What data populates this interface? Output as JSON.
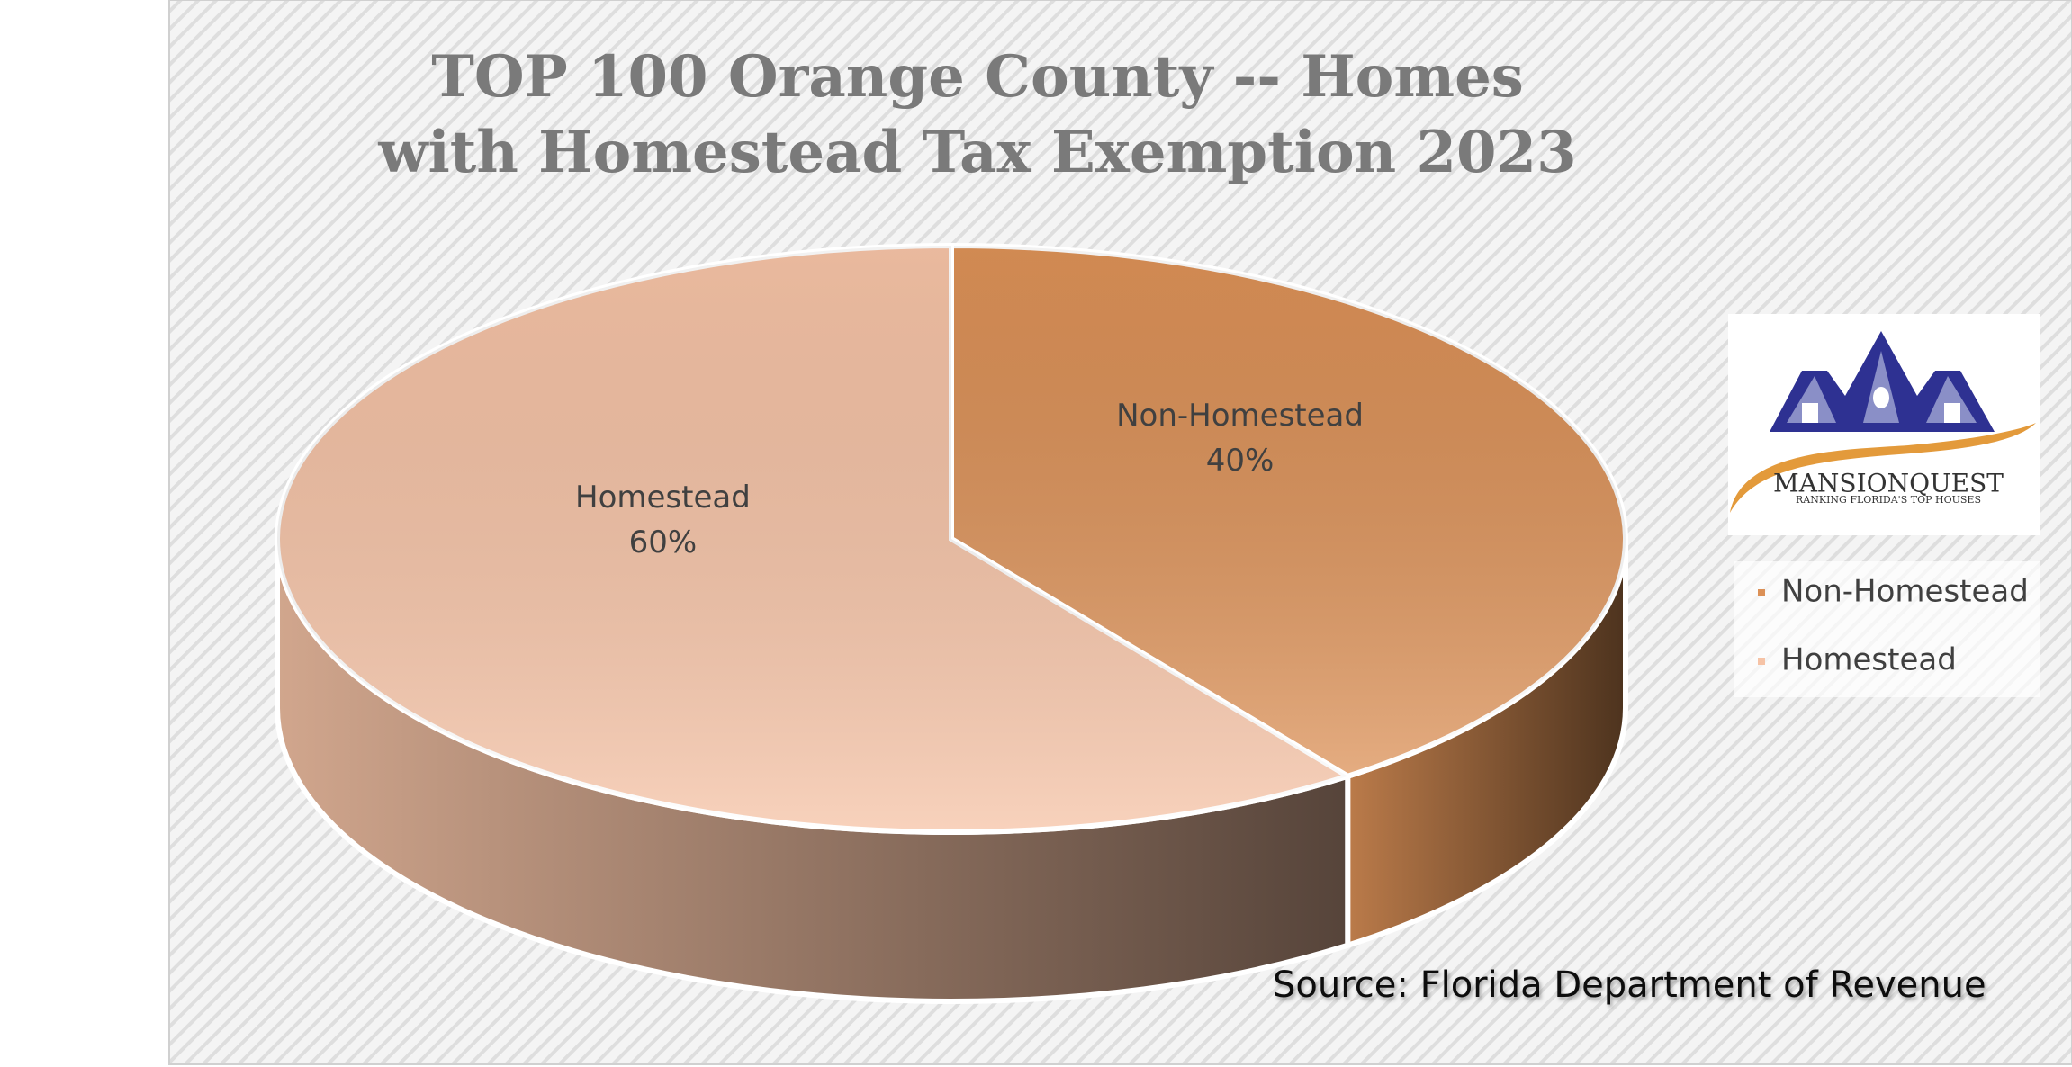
{
  "chart_data": {
    "type": "pie3d",
    "title": "TOP 100 Orange County -- Homes with Homestead Tax Exemption 2023",
    "categories": [
      "Non-Homestead",
      "Homestead"
    ],
    "values": [
      40,
      60
    ],
    "value_labels": [
      "40%",
      "60%"
    ],
    "colors": [
      "#dc9157",
      "#f6c3a6"
    ],
    "legend": "right",
    "source": "Source: Florida Department of Revenue",
    "logo": {
      "name": "MANSIONQUEST",
      "tagline": "RANKING FLORIDA'S TOP HOUSES"
    }
  }
}
